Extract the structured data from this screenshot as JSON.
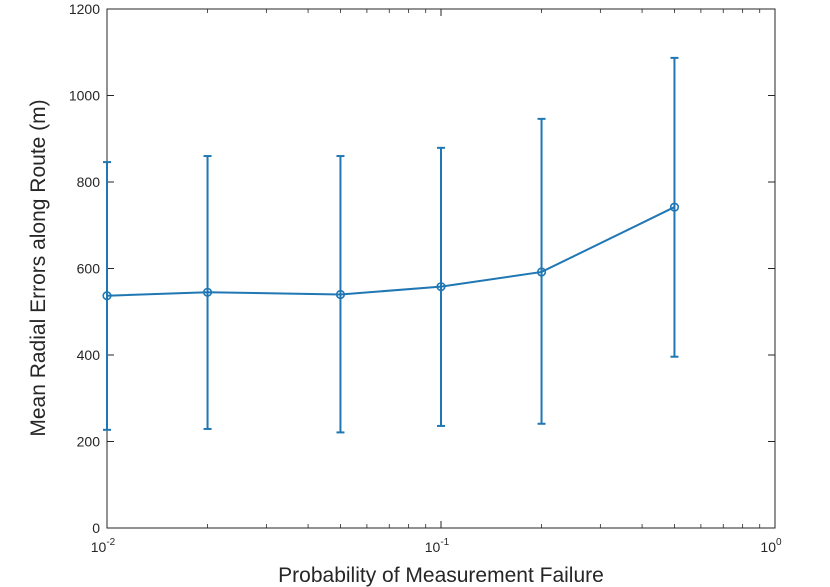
{
  "chart_data": {
    "type": "line",
    "title": "",
    "xlabel": "Probability of Measurement Failure",
    "ylabel": "Mean Radial Errors along Route (m)",
    "xscale": "log",
    "xlim": [
      0.01,
      1
    ],
    "ylim": [
      0,
      1200
    ],
    "grid": false,
    "legend": "none",
    "x_ticks": [
      {
        "value": 0.01,
        "base": "10",
        "exp": "-2"
      },
      {
        "value": 0.1,
        "base": "10",
        "exp": "-1"
      },
      {
        "value": 1,
        "base": "10",
        "exp": "0"
      }
    ],
    "y_ticks": [
      {
        "value": 0,
        "label": "0"
      },
      {
        "value": 200,
        "label": "200"
      },
      {
        "value": 400,
        "label": "400"
      },
      {
        "value": 600,
        "label": "600"
      },
      {
        "value": 800,
        "label": "800"
      },
      {
        "value": 1000,
        "label": "1000"
      },
      {
        "value": 1200,
        "label": "1200"
      }
    ],
    "series": [
      {
        "color": "#1f77b4",
        "x": [
          0.01,
          0.02,
          0.05,
          0.1,
          0.2,
          0.5
        ],
        "y": [
          537,
          545,
          540,
          558,
          592,
          742
        ],
        "error_lower": [
          227,
          229,
          221,
          236,
          241,
          396
        ],
        "error_upper": [
          846,
          860,
          860,
          879,
          946,
          1087
        ]
      }
    ]
  }
}
